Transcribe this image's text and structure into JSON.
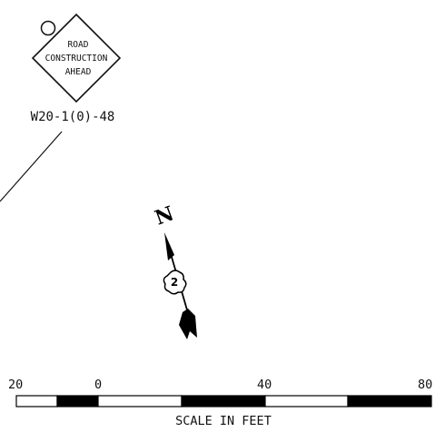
{
  "sign": {
    "lines": [
      "ROAD",
      "CONSTRUCTION",
      "AHEAD"
    ],
    "code": "W20-1(0)-48"
  },
  "north_arrow": {
    "label": "N",
    "badge": "2"
  },
  "scale_bar": {
    "tick_labels": [
      "20",
      "0",
      "40",
      "80"
    ],
    "title": "SCALE IN FEET"
  }
}
